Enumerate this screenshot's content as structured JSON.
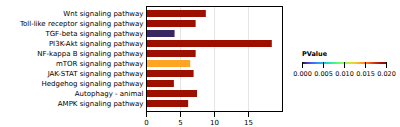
{
  "chart_data": {
    "type": "bar",
    "orientation": "horizontal",
    "categories": [
      "Wnt signaling pathway",
      "Toll-like receptor signaling pathway",
      "TGF-beta signaling pathway",
      "PI3K-Akt signaling pathway",
      "NF-kappa B signaling pathway",
      "mTOR signaling pathway",
      "JAK-STAT signaling pathway",
      "Hedgehog signaling pathway",
      "Autophagy - animal",
      "AMPK signaling pathway"
    ],
    "values": [
      8.8,
      7.3,
      4.2,
      18.5,
      7.3,
      6.5,
      7.0,
      4.1,
      7.5,
      6.2
    ],
    "pvalues": [
      0.019,
      0.019,
      0.0005,
      0.019,
      0.019,
      0.014,
      0.019,
      0.019,
      0.019,
      0.019
    ],
    "xlim": [
      0,
      20
    ],
    "xticks": [
      0,
      5,
      10,
      15
    ],
    "grid": true,
    "colorbar_label": "PValue",
    "colorbar_lim": [
      0.0,
      0.02
    ],
    "colorbar_ticks": [
      {
        "value": 0.0,
        "label": "0.000"
      },
      {
        "value": 0.005,
        "label": "0.005"
      },
      {
        "value": 0.01,
        "label": "0.010"
      },
      {
        "value": 0.015,
        "label": "0.015"
      },
      {
        "value": 0.02,
        "label": "0.020"
      }
    ]
  }
}
